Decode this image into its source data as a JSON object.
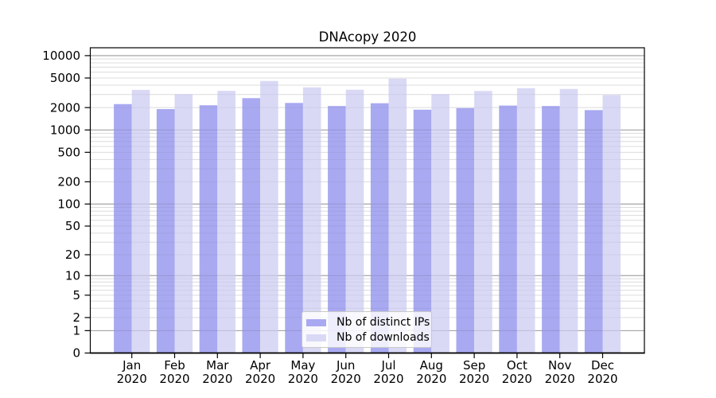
{
  "title": "DNAcopy 2020",
  "legend": {
    "position": "lower center",
    "items": [
      {
        "label": "Nb of distinct IPs",
        "color": "#a9a9f1"
      },
      {
        "label": "Nb of downloads",
        "color": "#d9d9f6"
      }
    ]
  },
  "chart_data": {
    "type": "bar",
    "title": "DNAcopy 2020",
    "categories": [
      "Jan",
      "Feb",
      "Mar",
      "Apr",
      "May",
      "Jun",
      "Jul",
      "Aug",
      "Sep",
      "Oct",
      "Nov",
      "Dec"
    ],
    "x_tick_second_line": "2020",
    "series": [
      {
        "name": "Nb of distinct IPs",
        "color": "#a9a9f1",
        "values": [
          2230,
          1910,
          2150,
          2680,
          2310,
          2100,
          2290,
          1875,
          1970,
          2130,
          2100,
          1850
        ]
      },
      {
        "name": "Nb of downloads",
        "color": "#d9d9f6",
        "values": [
          3460,
          3030,
          3360,
          4560,
          3740,
          3480,
          4900,
          3040,
          3350,
          3650,
          3560,
          2950
        ]
      }
    ],
    "xlabel": "",
    "ylabel": "",
    "y_scale": "log10(1+v)",
    "y_ticks": [
      10000,
      5000,
      2000,
      1000,
      500,
      200,
      100,
      50,
      20,
      10,
      5,
      2,
      1,
      0
    ],
    "ylim": [
      0,
      12800
    ],
    "grid": {
      "orientation": "horizontal",
      "majors_at": [
        1,
        10,
        100,
        1000,
        10000
      ],
      "minor_color": "#e8e8e8",
      "major_color": "#b2b2b2",
      "spine_color": "#000000"
    }
  }
}
